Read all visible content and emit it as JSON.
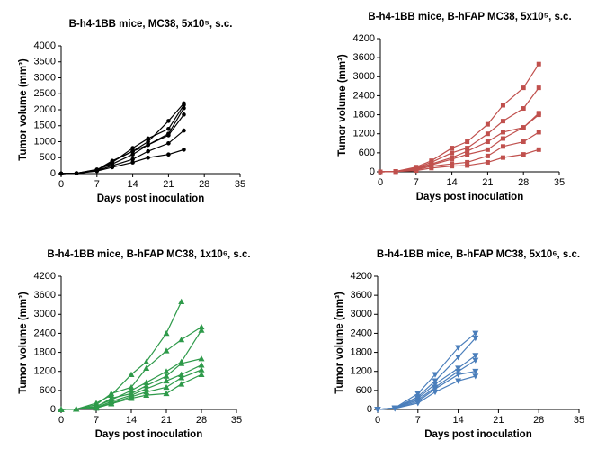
{
  "chart_data": [
    {
      "type": "line",
      "title": "B-h4-1BB mice, MC38, 5x10⁵, s.c.",
      "xlabel": "Days post inoculation",
      "ylabel": "Tumor volume (mm³)",
      "marker": "circle",
      "x": [
        0,
        3,
        7,
        10,
        14,
        17,
        21,
        24
      ],
      "xlim": [
        0,
        35
      ],
      "xticks": [
        0,
        7,
        14,
        21,
        28,
        35
      ],
      "ylim": [
        0,
        4000
      ],
      "yticks": [
        0,
        500,
        1000,
        1500,
        2000,
        2500,
        3000,
        3500,
        4000
      ],
      "series": [
        {
          "color": "#000000",
          "values": [
            0,
            10,
            120,
            400,
            700,
            1000,
            1650,
            2200
          ]
        },
        {
          "color": "#000000",
          "values": [
            0,
            10,
            100,
            350,
            800,
            1100,
            1400,
            2150
          ]
        },
        {
          "color": "#000000",
          "values": [
            0,
            10,
            130,
            300,
            600,
            900,
            1250,
            2050
          ]
        },
        {
          "color": "#000000",
          "values": [
            0,
            10,
            100,
            380,
            700,
            900,
            1200,
            1850
          ]
        },
        {
          "color": "#000000",
          "values": [
            0,
            10,
            90,
            250,
            450,
            700,
            950,
            1350
          ]
        },
        {
          "color": "#000000",
          "values": [
            0,
            10,
            80,
            200,
            350,
            500,
            600,
            750
          ]
        }
      ]
    },
    {
      "type": "line",
      "title": "B-h4-1BB mice, B-hFAP MC38, 5x10⁵, s.c.",
      "xlabel": "Days post inoculation",
      "ylabel": "Tumor volume (mm³)",
      "marker": "square",
      "x": [
        0,
        3,
        7,
        10,
        14,
        17,
        21,
        24,
        28,
        31
      ],
      "xlim": [
        0,
        35
      ],
      "xticks": [
        0,
        7,
        14,
        21,
        28,
        35
      ],
      "ylim": [
        0,
        4200
      ],
      "yticks": [
        0,
        600,
        1200,
        1800,
        2400,
        3000,
        3600,
        4200
      ],
      "series": [
        {
          "color": "#c0504d",
          "values": [
            0,
            10,
            150,
            350,
            750,
            950,
            1500,
            2100,
            2650,
            3400
          ]
        },
        {
          "color": "#c0504d",
          "values": [
            0,
            10,
            120,
            300,
            600,
            750,
            1200,
            1600,
            2000,
            2650
          ]
        },
        {
          "color": "#c0504d",
          "values": [
            0,
            10,
            100,
            250,
            450,
            650,
            950,
            1250,
            1400,
            1850
          ]
        },
        {
          "color": "#c0504d",
          "values": [
            0,
            10,
            80,
            220,
            400,
            550,
            700,
            1050,
            1400,
            1800
          ]
        },
        {
          "color": "#c0504d",
          "values": [
            0,
            10,
            60,
            180,
            250,
            300,
            500,
            800,
            950,
            1250
          ]
        },
        {
          "color": "#c0504d",
          "values": [
            0,
            10,
            40,
            120,
            180,
            200,
            300,
            450,
            550,
            700
          ]
        }
      ]
    },
    {
      "type": "line",
      "title": "B-h4-1BB mice, B-hFAP MC38, 1x10⁶, s.c.",
      "xlabel": "Days post inoculation",
      "ylabel": "Tumor volume (mm³)",
      "marker": "triangle",
      "x": [
        0,
        3,
        7,
        10,
        14,
        17,
        21,
        24,
        28
      ],
      "xlim": [
        0,
        35
      ],
      "xticks": [
        0,
        7,
        14,
        21,
        28,
        35
      ],
      "ylim": [
        0,
        4200
      ],
      "yticks": [
        0,
        600,
        1200,
        1800,
        2400,
        3000,
        3600,
        4200
      ],
      "series": [
        {
          "color": "#2e9a4a",
          "values": [
            0,
            10,
            200,
            450,
            1100,
            1500,
            2400,
            3400,
            null
          ]
        },
        {
          "color": "#2e9a4a",
          "values": [
            0,
            10,
            150,
            500,
            700,
            1300,
            1850,
            2200,
            2600
          ]
        },
        {
          "color": "#2e9a4a",
          "values": [
            0,
            10,
            100,
            300,
            600,
            850,
            1200,
            1500,
            2500
          ]
        },
        {
          "color": "#2e9a4a",
          "values": [
            0,
            10,
            80,
            350,
            500,
            750,
            1050,
            1450,
            1600
          ]
        },
        {
          "color": "#2e9a4a",
          "values": [
            0,
            10,
            60,
            250,
            450,
            650,
            900,
            1100,
            1400
          ]
        },
        {
          "color": "#2e9a4a",
          "values": [
            0,
            10,
            50,
            200,
            400,
            550,
            700,
            1000,
            1250
          ]
        },
        {
          "color": "#2e9a4a",
          "values": [
            0,
            10,
            40,
            180,
            350,
            450,
            500,
            800,
            1100
          ]
        }
      ]
    },
    {
      "type": "line",
      "title": "B-h4-1BB mice, B-hFAP MC38, 5x10⁶, s.c.",
      "xlabel": "Days post inoculation",
      "ylabel": "Tumor volume (mm³)",
      "marker": "triangle-down",
      "x": [
        0,
        3,
        7,
        10,
        14,
        17
      ],
      "xlim": [
        0,
        35
      ],
      "xticks": [
        0,
        7,
        14,
        21,
        28,
        35
      ],
      "ylim": [
        0,
        4200
      ],
      "yticks": [
        0,
        600,
        1200,
        1800,
        2400,
        3000,
        3600,
        4200
      ],
      "series": [
        {
          "color": "#4a7ebb",
          "values": [
            0,
            50,
            500,
            1100,
            1950,
            2400
          ]
        },
        {
          "color": "#4a7ebb",
          "values": [
            0,
            50,
            400,
            900,
            1650,
            2250
          ]
        },
        {
          "color": "#4a7ebb",
          "values": [
            0,
            40,
            350,
            800,
            1300,
            1700
          ]
        },
        {
          "color": "#4a7ebb",
          "values": [
            0,
            40,
            300,
            700,
            1200,
            1550
          ]
        },
        {
          "color": "#4a7ebb",
          "values": [
            0,
            30,
            250,
            650,
            1100,
            1200
          ]
        },
        {
          "color": "#4a7ebb",
          "values": [
            0,
            30,
            200,
            550,
            900,
            1050
          ]
        }
      ]
    }
  ]
}
